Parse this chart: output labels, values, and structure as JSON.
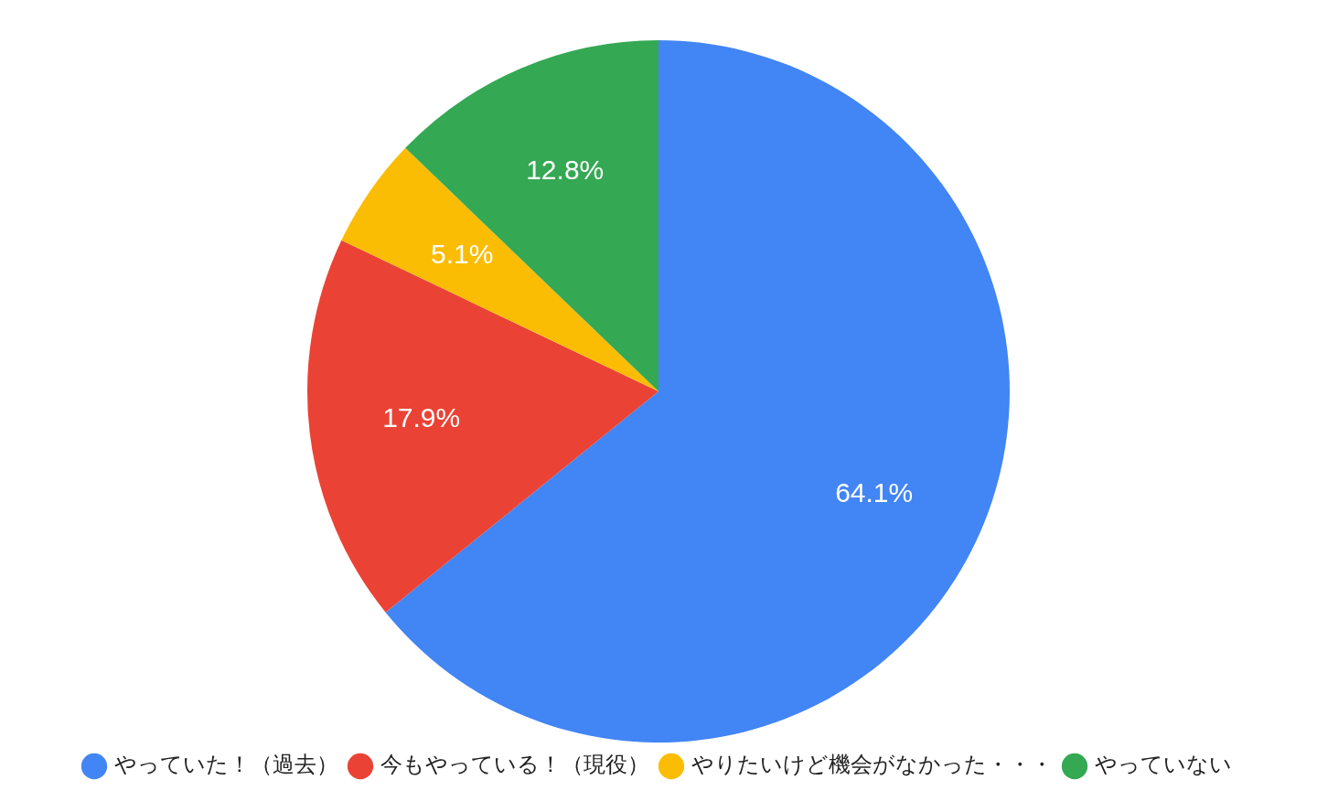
{
  "chart_data": {
    "type": "pie",
    "categories": [
      "やっていた！（過去）",
      "今もやっている！（現役）",
      "やりたいけど機会がなかった・・・",
      "やっていない"
    ],
    "values": [
      64.1,
      17.9,
      5.1,
      12.8
    ],
    "colors": [
      "#4285f4",
      "#ea4335",
      "#fbbc04",
      "#34a853"
    ],
    "value_labels": [
      "64.1%",
      "17.9%",
      "5.1%",
      "12.8%"
    ],
    "legend": "bottom"
  }
}
